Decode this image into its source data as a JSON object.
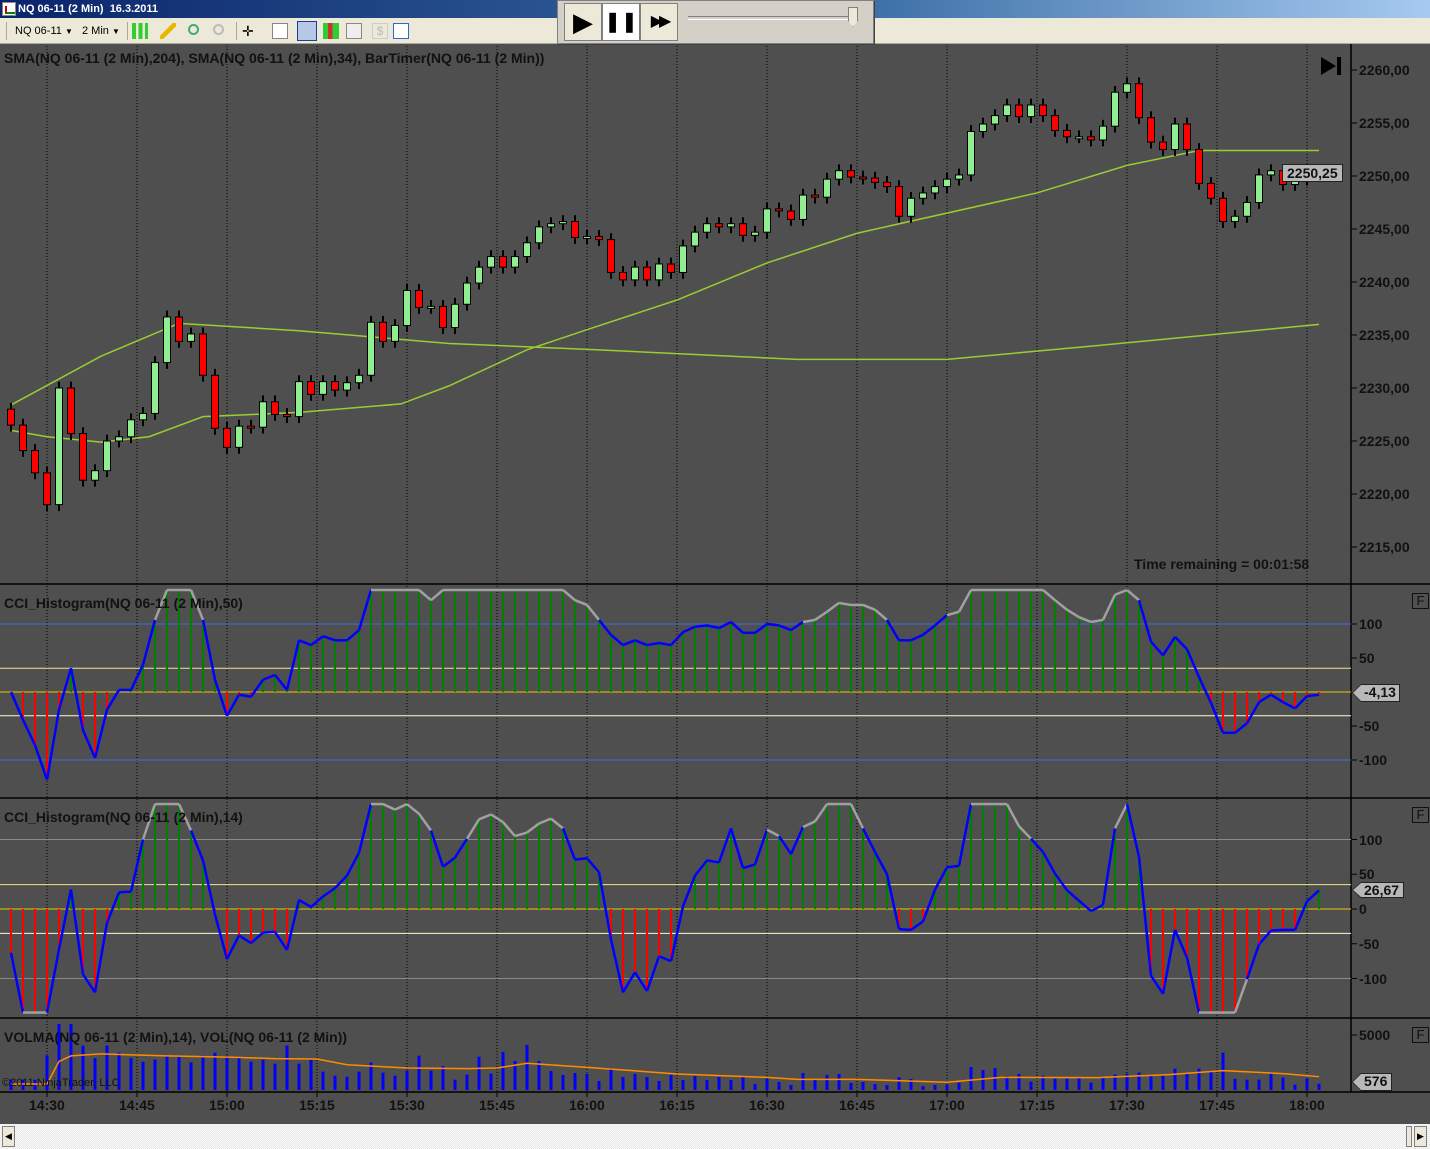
{
  "window": {
    "title": "NQ 06-11 (2 Min)  16.3.2011"
  },
  "toolbar": {
    "instrument": "NQ 06-11",
    "interval": "2 Min",
    "icons": [
      "bar-type-icon",
      "draw-pencil-icon",
      "zoom-in-icon",
      "zoom-out-icon",
      "crosshair-icon",
      "data-box-icon",
      "chart-trader-icon",
      "strategy-icon",
      "indicator-icon",
      "dollar-icon",
      "properties-icon"
    ]
  },
  "player": {
    "play": "▶",
    "pause": "❚❚",
    "fast_forward": "▶▶",
    "speed_fraction": 0.95
  },
  "colors": {
    "background": "#4f4f4f",
    "up_candle": "#90ee90",
    "down_candle": "#ff0000",
    "sma": "#9acd32",
    "cci_line": "#0000ff",
    "cci_extreme": "#a0a0a0",
    "hist_up": "#008000",
    "hist_down": "#ff0000",
    "volume": "#0000ff",
    "volma": "#ff8c00"
  },
  "panels": {
    "price": {
      "label": "SMA(NQ 06-11 (2 Min),204), SMA(NQ 06-11 (2 Min),34), BarTimer(NQ 06-11 (2 Min))",
      "ticks": [
        "2260,00",
        "2255,00",
        "2250,00",
        "2245,00",
        "2240,00",
        "2235,00",
        "2230,00",
        "2225,00",
        "2220,00",
        "2215,00"
      ],
      "last": "2250,25",
      "timer": "Time remaining = 00:01:58"
    },
    "cci50": {
      "label": "CCI_Histogram(NQ 06-11 (2 Min),50)",
      "ticks": [
        "100",
        "50",
        "-50",
        "-100"
      ],
      "last": "-4,13",
      "f": "F"
    },
    "cci14": {
      "label": "CCI_Histogram(NQ 06-11 (2 Min),14)",
      "ticks": [
        "100",
        "50",
        "0",
        "-50",
        "-100"
      ],
      "last": "26,67",
      "f": "F"
    },
    "volume": {
      "label": "VOLMA(NQ 06-11 (2 Min),14), VOL(NQ 06-11 (2 Min))",
      "ticks": [
        "5000"
      ],
      "last": "576",
      "f": "F",
      "copyright": "©2011 NinjaTrader, LLC"
    }
  },
  "time_axis": [
    "14:30",
    "14:45",
    "15:00",
    "15:15",
    "15:30",
    "15:45",
    "16:00",
    "16:15",
    "16:30",
    "16:45",
    "17:00",
    "17:15",
    "17:30",
    "17:45",
    "18:00"
  ],
  "chart_data": {
    "type": "candlestick",
    "first_bar": "14:24",
    "bar_minutes": 2,
    "close": [
      2226.5,
      2224.1,
      2222,
      2219,
      2230,
      2225.7,
      2221.3,
      2222.2,
      2225,
      2225.4,
      2227,
      2227.6,
      2232.4,
      2236.7,
      2234.4,
      2235.1,
      2231.2,
      2226.2,
      2224.4,
      2226.4,
      2226.3,
      2228.7,
      2227.5,
      2227.3,
      2230.6,
      2229.4,
      2230.6,
      2229.8,
      2230.5,
      2231.2,
      2236.2,
      2234.4,
      2235.9,
      2239.2,
      2237.6,
      2237.7,
      2235.7,
      2237.9,
      2239.9,
      2241.4,
      2242.4,
      2241.4,
      2242.4,
      2243.7,
      2245.2,
      2245.5,
      2245.7,
      2244.2,
      2244.3,
      2244,
      2240.9,
      2240.2,
      2241.4,
      2240.2,
      2241.7,
      2240.9,
      2243.4,
      2244.7,
      2245.5,
      2245.2,
      2245.5,
      2244.4,
      2244.7,
      2246.9,
      2246.7,
      2245.9,
      2248.2,
      2248,
      2249.7,
      2250.5,
      2249.9,
      2249.8,
      2249.4,
      2249,
      2246.2,
      2247.9,
      2248.4,
      2249,
      2249.7,
      2250.1,
      2254.2,
      2254.9,
      2255.7,
      2256.7,
      2255.6,
      2256.7,
      2255.7,
      2254.3,
      2253.7,
      2253.7,
      2253.4,
      2254.7,
      2257.9,
      2258.7,
      2255.5,
      2253.2,
      2252.5,
      2254.9,
      2252.5,
      2249.3,
      2247.9,
      2245.7,
      2246.2,
      2247.5,
      2250.1,
      2250.5,
      2249.2,
      2249.7,
      2250.5,
      2250.25
    ],
    "first_open": 2228,
    "sma204": [
      [
        "14:24",
        2228.4
      ],
      [
        "14:39",
        2233
      ],
      [
        "14:52",
        2236.1
      ],
      [
        "15:12",
        2235.4
      ],
      [
        "15:37",
        2234.2
      ],
      [
        "16:02",
        2233.6
      ],
      [
        "16:35",
        2232.7
      ],
      [
        "17:00",
        2232.7
      ],
      [
        "17:25",
        2234
      ],
      [
        "18:02",
        2236
      ]
    ],
    "sma34": [
      [
        "14:24",
        2226
      ],
      [
        "14:30",
        2225.4
      ],
      [
        "14:39",
        2224.9
      ],
      [
        "14:47",
        2225.4
      ],
      [
        "14:56",
        2227.3
      ],
      [
        "15:12",
        2227.7
      ],
      [
        "15:29",
        2228.5
      ],
      [
        "15:37",
        2230.2
      ],
      [
        "15:50",
        2233.6
      ],
      [
        "16:00",
        2235.5
      ],
      [
        "16:15",
        2238.3
      ],
      [
        "16:30",
        2241.8
      ],
      [
        "16:45",
        2244.6
      ],
      [
        "17:15",
        2248.4
      ],
      [
        "17:30",
        2251
      ],
      [
        "17:42",
        2252.4
      ],
      [
        "18:02",
        2252.4
      ]
    ],
    "cci50": [
      0,
      -41,
      -78,
      -129,
      -26,
      35,
      -56,
      -97,
      -26,
      3,
      3,
      40,
      106,
      150,
      150,
      150,
      106,
      18,
      -35,
      -4,
      -7,
      18,
      25,
      3,
      76,
      69,
      82,
      76,
      76,
      91,
      150,
      150,
      150,
      150,
      150,
      135,
      150,
      150,
      150,
      150,
      150,
      150,
      150,
      150,
      150,
      150,
      150,
      135,
      128,
      106,
      84,
      69,
      76,
      69,
      72,
      69,
      88,
      96,
      98,
      94,
      103,
      87,
      87,
      100,
      98,
      91,
      103,
      106,
      118,
      131,
      128,
      128,
      121,
      106,
      76,
      76,
      84,
      98,
      113,
      118,
      150,
      150,
      150,
      150,
      150,
      150,
      150,
      135,
      121,
      110,
      103,
      106,
      143,
      150,
      135,
      74,
      54,
      81,
      63,
      22,
      -16,
      -60,
      -60,
      -46,
      -15,
      -4,
      -15,
      -24,
      -6,
      -4.13
    ],
    "cci14": [
      -63,
      -149,
      -149,
      -149,
      -58,
      28,
      -94,
      -120,
      -20,
      24,
      25,
      100,
      151,
      151,
      151,
      113,
      70,
      -8,
      -72,
      -38,
      -49,
      -34,
      -33,
      -59,
      13,
      3,
      18,
      30,
      48,
      81,
      151,
      151,
      143,
      151,
      137,
      113,
      61,
      74,
      101,
      129,
      136,
      125,
      105,
      110,
      123,
      130,
      116,
      71,
      73,
      53,
      -44,
      -120,
      -91,
      -118,
      -68,
      -75,
      4,
      48,
      70,
      67,
      116,
      59,
      64,
      114,
      105,
      79,
      118,
      126,
      151,
      151,
      151,
      116,
      82,
      50,
      -29,
      -30,
      -18,
      28,
      60,
      62,
      151,
      151,
      151,
      151,
      119,
      101,
      82,
      51,
      27,
      12,
      -3,
      6,
      116,
      151,
      75,
      -96,
      -122,
      -30,
      -70,
      -149,
      -149,
      -149,
      -149,
      -101,
      -51,
      -31,
      -30,
      -30,
      11,
      26.67
    ],
    "cci_levels": [
      100,
      35,
      0,
      -35,
      -100
    ],
    "volume": [
      940,
      940,
      940,
      3150,
      6000,
      6000,
      4040,
      2900,
      4040,
      3400,
      2900,
      2570,
      2760,
      3120,
      3030,
      2520,
      3120,
      3400,
      3120,
      2940,
      2570,
      2760,
      2400,
      4040,
      2400,
      2760,
      1670,
      1300,
      1210,
      1670,
      2490,
      1580,
      1300,
      1760,
      3120,
      1760,
      2180,
      940,
      1400,
      3030,
      1490,
      3460,
      2640,
      4100,
      2640,
      1730,
      1370,
      1550,
      1460,
      820,
      2000,
      1180,
      1460,
      1180,
      820,
      1370,
      910,
      1270,
      910,
      1180,
      910,
      1270,
      550,
      1000,
      730,
      460,
      1550,
      910,
      1370,
      1460,
      640,
      730,
      550,
      460,
      1180,
      1000,
      360,
      460,
      460,
      640,
      2090,
      1820,
      2000,
      1270,
      1460,
      760,
      1300,
      1030,
      1030,
      1120,
      670,
      1210,
      1400,
      1490,
      1580,
      1400,
      1300,
      1940,
      1490,
      1940,
      1760,
      3400,
      1030,
      940,
      940,
      1580,
      1120,
      490,
      1030,
      576
    ],
    "volma": [
      [
        "14:24",
        550
      ],
      [
        "14:30",
        550
      ],
      [
        "14:32",
        2600
      ],
      [
        "14:34",
        3100
      ],
      [
        "14:39",
        3280
      ],
      [
        "14:50",
        3100
      ],
      [
        "15:01",
        2980
      ],
      [
        "15:08",
        2850
      ],
      [
        "15:15",
        2820
      ],
      [
        "15:20",
        2300
      ],
      [
        "15:30",
        2000
      ],
      [
        "15:40",
        1940
      ],
      [
        "15:45",
        2000
      ],
      [
        "15:50",
        2430
      ],
      [
        "16:00",
        2060
      ],
      [
        "16:15",
        1460
      ],
      [
        "16:30",
        1150
      ],
      [
        "16:35",
        970
      ],
      [
        "16:45",
        970
      ],
      [
        "17:00",
        700
      ],
      [
        "17:09",
        1150
      ],
      [
        "17:25",
        1120
      ],
      [
        "17:37",
        1400
      ],
      [
        "17:46",
        1760
      ],
      [
        "17:56",
        1490
      ],
      [
        "18:02",
        1210
      ]
    ]
  }
}
